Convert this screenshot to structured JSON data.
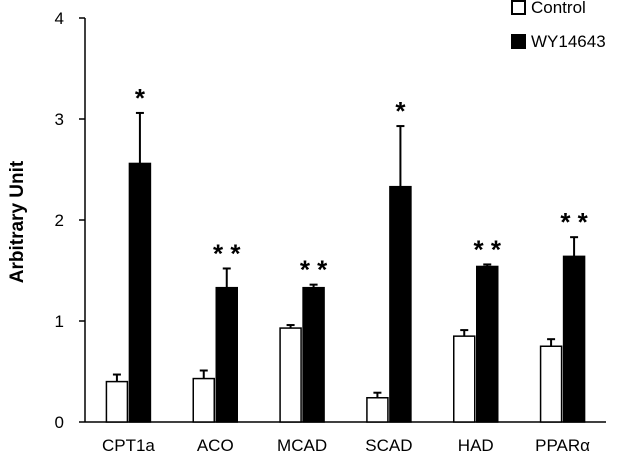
{
  "chart_data": {
    "type": "bar",
    "title": "",
    "xlabel": "",
    "ylabel": "Arbitrary Unit",
    "ylim": [
      0,
      4
    ],
    "yticks": [
      0,
      1,
      2,
      3,
      4
    ],
    "grid": false,
    "legend_position": "top-right",
    "categories": [
      "CPT1a",
      "ACO",
      "MCAD",
      "SCAD",
      "HAD",
      "PPARα"
    ],
    "series": [
      {
        "name": "Control",
        "fill": "#ffffff",
        "stroke": "#000000",
        "values": [
          0.4,
          0.43,
          0.93,
          0.24,
          0.85,
          0.75
        ],
        "errors": [
          0.07,
          0.08,
          0.03,
          0.05,
          0.06,
          0.07
        ]
      },
      {
        "name": "WY14643",
        "fill": "#000000",
        "stroke": "#000000",
        "values": [
          2.56,
          1.33,
          1.33,
          2.33,
          1.54,
          1.64
        ],
        "errors": [
          0.5,
          0.19,
          0.03,
          0.6,
          0.02,
          0.19
        ]
      }
    ],
    "significance": [
      "*",
      "**",
      "**",
      "*",
      "**",
      "**"
    ]
  }
}
